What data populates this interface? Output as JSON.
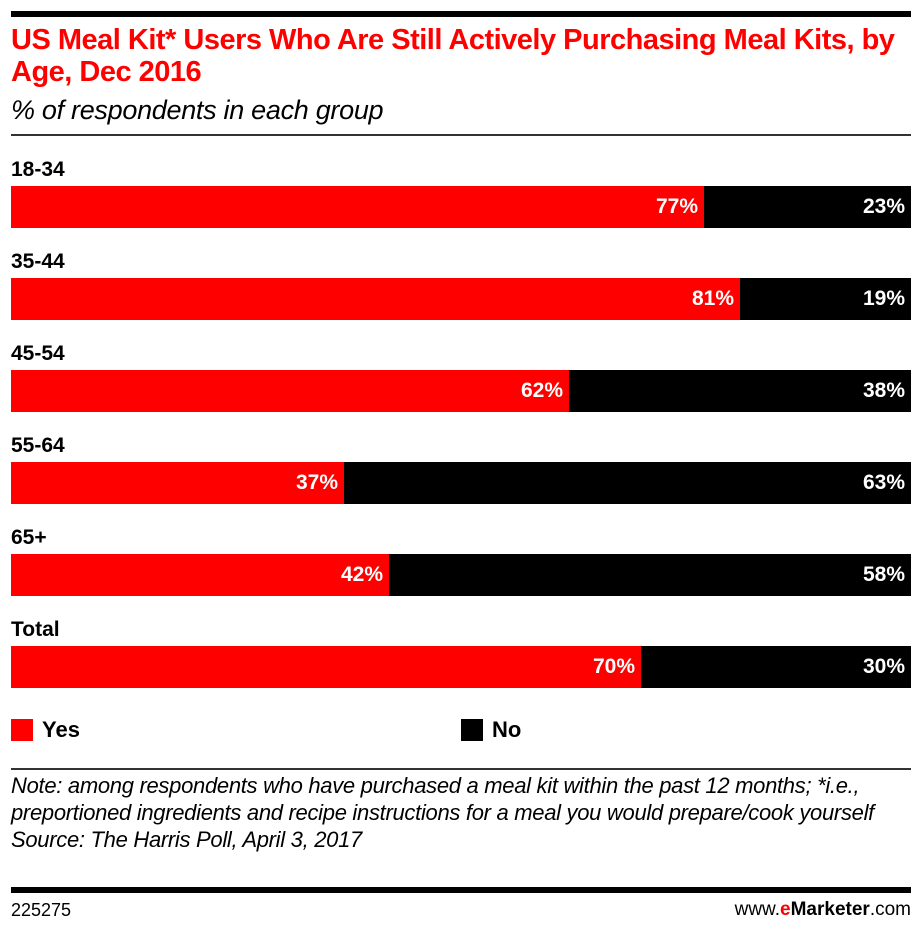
{
  "header": {
    "title": "US Meal Kit* Users Who Are Still Actively Purchasing Meal Kits, by Age, Dec 2016",
    "subtitle": "% of respondents in each group"
  },
  "legend": [
    {
      "label": "Yes",
      "color": "#ff0000"
    },
    {
      "label": "No",
      "color": "#000000"
    }
  ],
  "notes": {
    "note": "Note: among respondents who have purchased a meal kit within the past 12 months; *i.e., preportioned ingredients and recipe instructions for a meal you would prepare/cook yourself",
    "source": "Source: The Harris Poll, April 3, 2017"
  },
  "footer": {
    "chart_id": "225275",
    "brand_prefix": "www.",
    "brand_e": "e",
    "brand_name": "Marketer",
    "brand_suffix": ".com"
  },
  "chart_data": {
    "type": "bar",
    "orientation": "horizontal-stacked-100",
    "title": "US Meal Kit* Users Who Are Still Actively Purchasing Meal Kits, by Age, Dec 2016",
    "subtitle": "% of respondents in each group",
    "categories": [
      "18-34",
      "35-44",
      "45-54",
      "55-64",
      "65+",
      "Total"
    ],
    "series": [
      {
        "name": "Yes",
        "color": "#ff0000",
        "values": [
          77,
          81,
          62,
          37,
          42,
          70
        ]
      },
      {
        "name": "No",
        "color": "#000000",
        "values": [
          23,
          19,
          38,
          63,
          58,
          30
        ]
      }
    ],
    "value_suffix": "%",
    "xlim": [
      0,
      100
    ],
    "grid": false,
    "legend_position": "bottom-left"
  }
}
